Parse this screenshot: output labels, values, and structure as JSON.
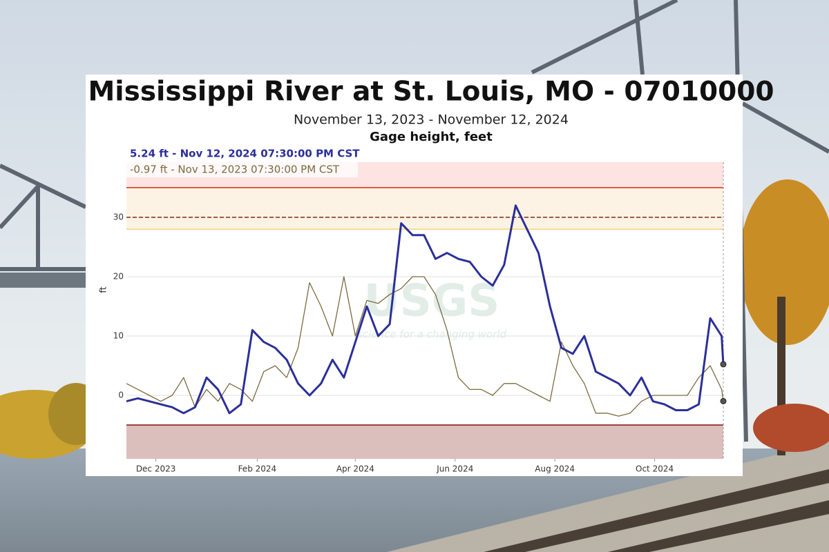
{
  "chart_data": {
    "type": "line",
    "title": "Mississippi River at St. Louis, MO - 07010000",
    "subtitle": "November 13, 2023 - November 12, 2024",
    "chart_label": "Gage height, feet",
    "y_label": "ft",
    "watermark": {
      "logo": "USGS",
      "tagline": "science for a changing world"
    },
    "x": [
      "2023-11-13",
      "2023-11-20",
      "2023-11-27",
      "2023-12-04",
      "2023-12-11",
      "2023-12-18",
      "2023-12-25",
      "2024-01-01",
      "2024-01-08",
      "2024-01-15",
      "2024-01-22",
      "2024-01-29",
      "2024-02-05",
      "2024-02-12",
      "2024-02-19",
      "2024-02-26",
      "2024-03-04",
      "2024-03-11",
      "2024-03-18",
      "2024-03-25",
      "2024-04-01",
      "2024-04-08",
      "2024-04-15",
      "2024-04-22",
      "2024-04-29",
      "2024-05-06",
      "2024-05-13",
      "2024-05-20",
      "2024-05-27",
      "2024-06-03",
      "2024-06-10",
      "2024-06-17",
      "2024-06-24",
      "2024-07-01",
      "2024-07-08",
      "2024-07-15",
      "2024-07-22",
      "2024-07-29",
      "2024-08-05",
      "2024-08-12",
      "2024-08-19",
      "2024-08-26",
      "2024-09-02",
      "2024-09-09",
      "2024-09-16",
      "2024-09-23",
      "2024-09-30",
      "2024-10-07",
      "2024-10-14",
      "2024-10-21",
      "2024-10-28",
      "2024-11-04",
      "2024-11-11",
      "2024-11-12"
    ],
    "series": [
      {
        "name": "5.24 ft - Nov 12, 2024 07:30:00 PM CST",
        "color": "#2b2f99",
        "width": 3,
        "values": [
          -1,
          -0.5,
          -1,
          -1.5,
          -2,
          -3,
          -2,
          3,
          1,
          -3,
          -1.5,
          11,
          9,
          8,
          6,
          2,
          0,
          2,
          6,
          3,
          9,
          15,
          10,
          12,
          29,
          27,
          27,
          23,
          24,
          23,
          22.5,
          20,
          18.5,
          22,
          32,
          28,
          24,
          15,
          8,
          7,
          10,
          4,
          3,
          2,
          0,
          3,
          -1,
          -1.5,
          -2.5,
          -2.5,
          -1.5,
          13,
          10,
          5.24
        ]
      },
      {
        "name": "-0.97 ft - Nov 13, 2023 07:30:00 PM CST",
        "color": "#7a6a3e",
        "width": 1.3,
        "values": [
          2,
          1,
          0,
          -1,
          0,
          3,
          -2,
          1,
          -1,
          2,
          1,
          -1,
          4,
          5,
          3,
          8,
          19,
          15,
          10,
          20,
          10,
          16,
          15.5,
          17,
          18,
          20,
          20,
          17,
          11,
          3,
          1,
          1,
          0,
          2,
          2,
          1,
          0,
          -1,
          9,
          5,
          2,
          -3,
          -3,
          -3.5,
          -3,
          -1,
          0,
          0,
          0,
          0,
          3,
          5,
          1,
          -0.97
        ]
      }
    ],
    "xlim": [
      "2023-11-13",
      "2024-11-12"
    ],
    "xticks": [
      {
        "value": "2023-12-01",
        "label": "Dec 2023"
      },
      {
        "value": "2024-02-01",
        "label": "Feb 2024"
      },
      {
        "value": "2024-04-01",
        "label": "Apr 2024"
      },
      {
        "value": "2024-06-01",
        "label": "Jun 2024"
      },
      {
        "value": "2024-08-01",
        "label": "Aug 2024"
      },
      {
        "value": "2024-10-01",
        "label": "Oct 2024"
      }
    ],
    "ylim": [
      -10.7,
      39.3
    ],
    "yticks": [
      0,
      10,
      20,
      30
    ],
    "grid": true,
    "thresholds": [
      {
        "value": 28,
        "color": "#f3d77e",
        "band": "#fdf3e4",
        "band_side": "above"
      },
      {
        "value": 35,
        "color": "#d23a2c",
        "band": "#fde3e1",
        "band_side": "above"
      },
      {
        "value": 30,
        "color": "#8a3a1c",
        "dashed": true
      },
      {
        "value": -5,
        "color": "#8b1d1d",
        "band": "#dbbfbc",
        "band_side": "below"
      }
    ]
  }
}
